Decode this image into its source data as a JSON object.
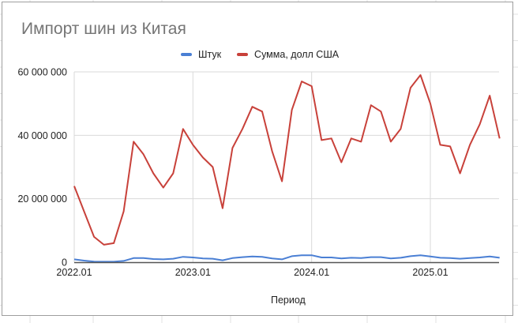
{
  "chart_title": "Импорт шин из Китая",
  "legend": [
    {
      "label": "Штук",
      "color": "#4a7fd4"
    },
    {
      "label": "Сумма, долл США",
      "color": "#c8413a"
    }
  ],
  "x_axis_title": "Период",
  "y_ticks": [
    "0",
    "20 000 000",
    "40 000 000",
    "60 000 000"
  ],
  "x_ticks": [
    "2022.01",
    "2023.01",
    "2024.01",
    "2025.01"
  ],
  "chart_data": {
    "type": "line",
    "title": "Импорт шин из Китая",
    "xlabel": "Период",
    "ylabel": "",
    "ylim": [
      0,
      60000000
    ],
    "grid": true,
    "legend_position": "top",
    "x": [
      "2022.01",
      "2022.02",
      "2022.03",
      "2022.04",
      "2022.05",
      "2022.06",
      "2022.07",
      "2022.08",
      "2022.09",
      "2022.10",
      "2022.11",
      "2022.12",
      "2023.01",
      "2023.02",
      "2023.03",
      "2023.04",
      "2023.05",
      "2023.06",
      "2023.07",
      "2023.08",
      "2023.09",
      "2023.10",
      "2023.11",
      "2023.12",
      "2024.01",
      "2024.02",
      "2024.03",
      "2024.04",
      "2024.05",
      "2024.06",
      "2024.07",
      "2024.08",
      "2024.09",
      "2024.10",
      "2024.11",
      "2024.12",
      "2025.01",
      "2025.02",
      "2025.03",
      "2025.04",
      "2025.05",
      "2025.06",
      "2025.07",
      "2025.08"
    ],
    "x_tick_labels": [
      "2022.01",
      "2023.01",
      "2024.01",
      "2025.01"
    ],
    "series": [
      {
        "name": "Штук",
        "color": "#4a7fd4",
        "values": [
          900000,
          500000,
          200000,
          150000,
          150000,
          400000,
          1300000,
          1300000,
          1000000,
          900000,
          1100000,
          1700000,
          1500000,
          1200000,
          1100000,
          600000,
          1300000,
          1600000,
          1800000,
          1700000,
          1200000,
          900000,
          1900000,
          2200000,
          2200000,
          1500000,
          1500000,
          1200000,
          1400000,
          1300000,
          1600000,
          1600000,
          1200000,
          1400000,
          1900000,
          2200000,
          1800000,
          1400000,
          1300000,
          1100000,
          1300000,
          1500000,
          1800000,
          1400000
        ]
      },
      {
        "name": "Сумма, долл США",
        "color": "#c8413a",
        "values": [
          24000000,
          16000000,
          8000000,
          5500000,
          6000000,
          16000000,
          38000000,
          34000000,
          28000000,
          23500000,
          28000000,
          42000000,
          37000000,
          33000000,
          30000000,
          17000000,
          36000000,
          42000000,
          49000000,
          47500000,
          35000000,
          25500000,
          48000000,
          57000000,
          55500000,
          38500000,
          39000000,
          31500000,
          39000000,
          38000000,
          49500000,
          47500000,
          38000000,
          42000000,
          55000000,
          59000000,
          50000000,
          37000000,
          36500000,
          28000000,
          37000000,
          43500000,
          52500000,
          39000000
        ]
      }
    ]
  }
}
